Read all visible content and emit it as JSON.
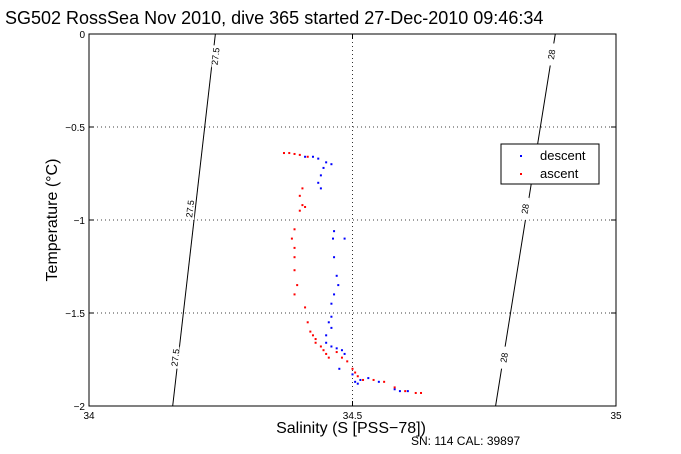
{
  "chart_data": {
    "type": "scatter",
    "title": "SG502 RossSea Nov 2010, dive 365 started 27-Dec-2010 09:46:34",
    "xlabel": "Salinity (S [PSS−78])",
    "ylabel": "Temperature (°C)",
    "annotation": "SN: 114  CAL: 39897",
    "xlim": [
      34,
      35
    ],
    "ylim": [
      -2,
      0
    ],
    "x_ticks": [
      "34",
      "34.5",
      "35"
    ],
    "y_ticks": [
      "0",
      "−0.5",
      "−1",
      "−1.5",
      "−2"
    ],
    "grid": true,
    "legend_position": "right",
    "density_contours": [
      {
        "label": "27.5",
        "points": [
          [
            34.2398,
            0
          ],
          [
            34.1588,
            -2
          ]
        ],
        "label_positions": [
          [
            34.2402,
            -0.12
          ],
          [
            34.192,
            -0.94
          ],
          [
            34.164,
            -1.74
          ]
        ]
      },
      {
        "label": "28",
        "points": [
          [
            34.8848,
            0
          ],
          [
            34.7715,
            -2
          ]
        ],
        "label_positions": [
          [
            34.878,
            -0.11
          ],
          [
            34.828,
            -0.94
          ],
          [
            34.788,
            -1.74
          ]
        ]
      }
    ],
    "series": [
      {
        "name": "descent",
        "color": "#0000ff",
        "points": [
          [
            34.41,
            -0.66
          ],
          [
            34.425,
            -0.66
          ],
          [
            34.435,
            -0.67
          ],
          [
            34.45,
            -0.69
          ],
          [
            34.46,
            -0.7
          ],
          [
            34.445,
            -0.72
          ],
          [
            34.44,
            -0.76
          ],
          [
            34.435,
            -0.8
          ],
          [
            34.44,
            -0.83
          ],
          [
            34.485,
            -1.1
          ],
          [
            34.465,
            -1.06
          ],
          [
            34.463,
            -1.1
          ],
          [
            34.465,
            -1.2
          ],
          [
            34.47,
            -1.3
          ],
          [
            34.473,
            -1.35
          ],
          [
            34.465,
            -1.4
          ],
          [
            34.46,
            -1.45
          ],
          [
            34.46,
            -1.52
          ],
          [
            34.455,
            -1.55
          ],
          [
            34.46,
            -1.58
          ],
          [
            34.45,
            -1.62
          ],
          [
            34.45,
            -1.66
          ],
          [
            34.46,
            -1.68
          ],
          [
            34.47,
            -1.69
          ],
          [
            34.48,
            -1.7
          ],
          [
            34.485,
            -1.72
          ],
          [
            34.475,
            -1.8
          ],
          [
            34.5,
            -1.83
          ],
          [
            34.505,
            -1.87
          ],
          [
            34.51,
            -1.88
          ],
          [
            34.515,
            -1.86
          ],
          [
            34.53,
            -1.85
          ],
          [
            34.55,
            -1.87
          ],
          [
            34.58,
            -1.91
          ],
          [
            34.59,
            -1.92
          ],
          [
            34.605,
            -1.92
          ]
        ]
      },
      {
        "name": "ascent",
        "color": "#ff0000",
        "points": [
          [
            34.37,
            -0.64
          ],
          [
            34.38,
            -0.64
          ],
          [
            34.39,
            -0.645
          ],
          [
            34.4,
            -0.65
          ],
          [
            34.415,
            -0.66
          ],
          [
            34.405,
            -0.83
          ],
          [
            34.4,
            -0.87
          ],
          [
            34.405,
            -0.92
          ],
          [
            34.41,
            -0.93
          ],
          [
            34.4,
            -0.95
          ],
          [
            34.39,
            -1.05
          ],
          [
            34.385,
            -1.1
          ],
          [
            34.39,
            -1.15
          ],
          [
            34.39,
            -1.2
          ],
          [
            34.39,
            -1.27
          ],
          [
            34.395,
            -1.35
          ],
          [
            34.39,
            -1.4
          ],
          [
            34.41,
            -1.47
          ],
          [
            34.415,
            -1.55
          ],
          [
            34.42,
            -1.6
          ],
          [
            34.425,
            -1.62
          ],
          [
            34.43,
            -1.64
          ],
          [
            34.43,
            -1.66
          ],
          [
            34.44,
            -1.68
          ],
          [
            34.445,
            -1.7
          ],
          [
            34.45,
            -1.72
          ],
          [
            34.455,
            -1.74
          ],
          [
            34.47,
            -1.71
          ],
          [
            34.48,
            -1.74
          ],
          [
            34.49,
            -1.76
          ],
          [
            34.5,
            -1.8
          ],
          [
            34.505,
            -1.82
          ],
          [
            34.51,
            -1.84
          ],
          [
            34.52,
            -1.86
          ],
          [
            34.54,
            -1.86
          ],
          [
            34.56,
            -1.87
          ],
          [
            34.58,
            -1.9
          ],
          [
            34.6,
            -1.92
          ],
          [
            34.62,
            -1.93
          ],
          [
            34.63,
            -1.93
          ]
        ]
      }
    ]
  }
}
